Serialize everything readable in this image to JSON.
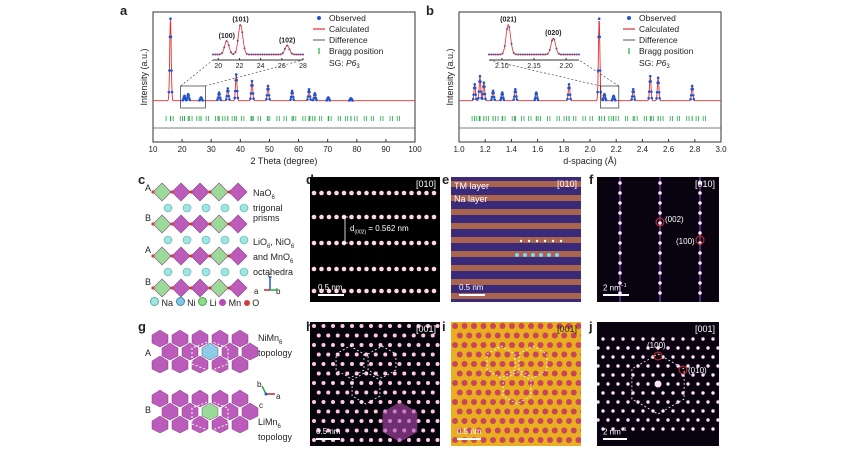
{
  "panels": {
    "a": "a",
    "b": "b",
    "c": "c",
    "d": "d",
    "e": "e",
    "f": "f",
    "g": "g",
    "h": "h",
    "i": "i",
    "j": "j"
  },
  "legend": {
    "observed": "Observed",
    "calculated": "Calculated",
    "difference": "Difference",
    "bragg": "Bragg position"
  },
  "sg_label": "SG: ",
  "sg_value": "P6",
  "sg_sub": "3",
  "chart_data": [
    {
      "type": "line",
      "xlabel": "2 Theta (degree)",
      "ylabel": "Intensity (a.u.)",
      "xlim": [
        10,
        100
      ],
      "x_ticks": [
        "10",
        "20",
        "30",
        "40",
        "50",
        "60",
        "70",
        "80",
        "90",
        "100"
      ],
      "peaks": [
        {
          "x": 16.0,
          "y": 1.0
        },
        {
          "x": 20.8,
          "y": 0.06
        },
        {
          "x": 22.1,
          "y": 0.08
        },
        {
          "x": 26.5,
          "y": 0.04
        },
        {
          "x": 32.7,
          "y": 0.1
        },
        {
          "x": 35.7,
          "y": 0.15
        },
        {
          "x": 38.6,
          "y": 0.32
        },
        {
          "x": 44.0,
          "y": 0.24
        },
        {
          "x": 49.5,
          "y": 0.18
        },
        {
          "x": 57.8,
          "y": 0.12
        },
        {
          "x": 63.6,
          "y": 0.14
        },
        {
          "x": 65.6,
          "y": 0.09
        },
        {
          "x": 70.2,
          "y": 0.04
        },
        {
          "x": 78.0,
          "y": 0.03
        }
      ],
      "inset": {
        "x_ticks": [
          "20",
          "22",
          "24",
          "26",
          "28"
        ],
        "labels": [
          "(100)",
          "(101)",
          "(102)"
        ],
        "peaks": [
          {
            "x": 20.8,
            "y": 0.45
          },
          {
            "x": 22.1,
            "y": 1.0
          },
          {
            "x": 26.5,
            "y": 0.3
          }
        ]
      }
    },
    {
      "type": "line",
      "xlabel": "d-spacing (Å)",
      "ylabel": "Intensity (a.u.)",
      "xlim": [
        1.0,
        3.0
      ],
      "x_ticks": [
        "1.0",
        "1.2",
        "1.4",
        "1.6",
        "1.8",
        "2.0",
        "2.2",
        "2.4",
        "2.6",
        "2.8",
        "3.0"
      ],
      "peaks": [
        {
          "x": 1.12,
          "y": 0.2
        },
        {
          "x": 1.16,
          "y": 0.3
        },
        {
          "x": 1.19,
          "y": 0.22
        },
        {
          "x": 1.26,
          "y": 0.12
        },
        {
          "x": 1.33,
          "y": 0.1
        },
        {
          "x": 1.43,
          "y": 0.14
        },
        {
          "x": 1.59,
          "y": 0.1
        },
        {
          "x": 1.84,
          "y": 0.2
        },
        {
          "x": 2.07,
          "y": 1.0
        },
        {
          "x": 2.11,
          "y": 0.08
        },
        {
          "x": 2.18,
          "y": 0.06
        },
        {
          "x": 2.33,
          "y": 0.14
        },
        {
          "x": 2.46,
          "y": 0.3
        },
        {
          "x": 2.52,
          "y": 0.28
        },
        {
          "x": 2.78,
          "y": 0.18
        }
      ],
      "inset": {
        "x_ticks": [
          "2.10",
          "2.15",
          "2.20"
        ],
        "labels": [
          "(021)",
          "(020)"
        ],
        "peaks": [
          {
            "x": 2.11,
            "y": 1.0
          },
          {
            "x": 2.18,
            "y": 0.55
          }
        ]
      }
    }
  ],
  "c": {
    "rows": [
      "A",
      "B",
      "A",
      "B"
    ],
    "na_label": "NaO",
    "na_sub": "6",
    "na_label2": "trigonal",
    "na_label3": "prisms",
    "tm_label1": "LiO",
    "tm_label1b": ", NiO",
    "tm_label1c": ",",
    "tm_label2": "and MnO",
    "tm_label3": "octahedra",
    "sub6": "6",
    "legend": [
      "Na",
      "Ni",
      "Li",
      "Mn",
      "O"
    ],
    "axes": {
      "c": "c",
      "a": "a",
      "b": "b"
    },
    "colors": {
      "na": "#9fe6e0",
      "ni": "#7ec8e3",
      "li": "#8fd88f",
      "mn": "#b44bb4",
      "o": "#d23c3c"
    }
  },
  "g": {
    "rows": [
      "A",
      "B"
    ],
    "top_label1": "NiMn",
    "top_label2": "topology",
    "bottom_label1": "LiMn",
    "bottom_label2": "topology",
    "sub6": "6",
    "axes": {
      "b": "b",
      "a": "a",
      "c": "c"
    }
  },
  "d": {
    "zone": "[010]",
    "spacing_label": "d",
    "spacing_sub": "(002)",
    "spacing_value": " = 0.562 nm",
    "scale": "0.5 nm"
  },
  "e": {
    "zone": "[010]",
    "tm_layer": "TM layer",
    "na_layer": "Na layer",
    "scale": "0.5 nm"
  },
  "f": {
    "zone": "[010]",
    "spot1": "(002)",
    "spot2": "(100)",
    "scale": "2 nm",
    "scale_sup": "−1"
  },
  "h": {
    "zone": "[001]",
    "scale": "0.5 nm"
  },
  "i": {
    "zone": "[001]",
    "scale": "0.5 nm"
  },
  "j": {
    "zone": "[001]",
    "spot1": "(100)",
    "spot2": "(010)",
    "scale": "2 nm",
    "scale_sup": "−1"
  }
}
